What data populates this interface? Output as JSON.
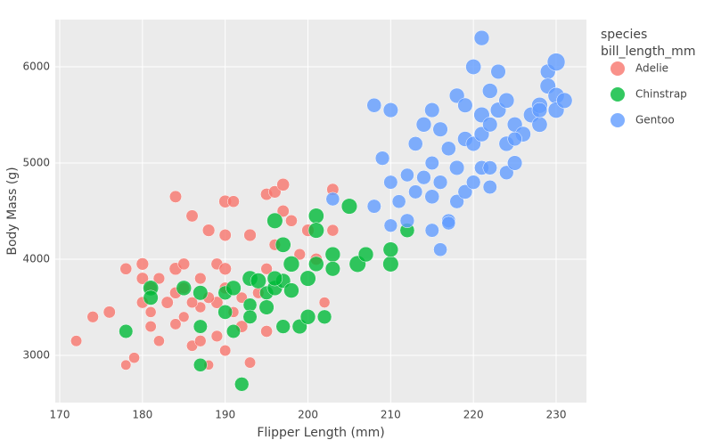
{
  "chart_data": {
    "type": "scatter",
    "xlabel": "Flipper Length (mm)",
    "ylabel": "Body Mass (g)",
    "legend_title": [
      "species",
      "bill_length_mm"
    ],
    "xlim": [
      169.46,
      233.66
    ],
    "ylim": [
      2509,
      6491
    ],
    "xticks": [
      170,
      180,
      190,
      200,
      210,
      220,
      230
    ],
    "yticks": [
      3000,
      4000,
      5000,
      6000
    ],
    "grid": true,
    "legend": "right",
    "series": [
      {
        "name": "Adelie",
        "color": "#F8766D",
        "x": [
          172,
          174,
          176,
          178,
          178,
          179,
          180,
          180,
          180,
          181,
          181,
          182,
          182,
          183,
          184,
          184,
          184,
          185,
          185,
          186,
          186,
          187,
          187,
          188,
          188,
          189,
          189,
          190,
          190,
          190,
          190,
          191,
          191,
          192,
          193,
          193,
          194,
          195,
          195,
          196,
          196,
          197,
          197,
          198,
          199,
          200,
          201,
          202,
          203,
          203,
          185,
          186,
          187,
          189,
          190,
          192,
          195,
          181,
          184,
          188
        ],
        "y": [
          3150,
          3400,
          3450,
          3900,
          2900,
          2975,
          3950,
          3800,
          3550,
          3700,
          3300,
          3150,
          3800,
          3550,
          3650,
          4650,
          3900,
          3950,
          3400,
          4450,
          3100,
          3800,
          3500,
          4300,
          2900,
          3950,
          3200,
          4600,
          4250,
          3900,
          3050,
          4600,
          3450,
          3300,
          4250,
          2925,
          3650,
          4675,
          3250,
          4700,
          4150,
          4775,
          4500,
          4400,
          4050,
          4300,
          4000,
          3550,
          4725,
          4300,
          3700,
          3550,
          3150,
          3550,
          3700,
          3600,
          3900,
          3450,
          3325,
          3600
        ],
        "size": [
          37,
          38,
          40,
          39,
          34,
          36,
          41,
          40,
          39,
          42,
          37,
          36,
          38,
          40,
          39,
          40,
          42,
          39,
          35,
          40,
          37,
          38,
          36,
          41,
          33,
          39,
          38,
          42,
          40,
          41,
          37,
          39,
          36,
          40,
          41,
          37,
          38,
          40,
          39,
          41,
          38,
          42,
          40,
          39,
          38,
          41,
          40,
          36,
          40,
          39,
          38,
          37,
          38,
          40,
          39,
          37,
          38,
          36,
          37,
          38
        ]
      },
      {
        "name": "Chinstrap",
        "color": "#00BA38",
        "x": [
          178,
          181,
          181,
          185,
          187,
          187,
          187,
          190,
          190,
          191,
          191,
          192,
          193,
          193,
          194,
          195,
          195,
          196,
          196,
          197,
          197,
          197,
          198,
          198,
          199,
          200,
          200,
          201,
          201,
          201,
          202,
          203,
          203,
          205,
          206,
          207,
          210,
          210,
          212,
          193,
          196
        ],
        "y": [
          3250,
          3700,
          3600,
          3700,
          3650,
          3300,
          2900,
          3450,
          3650,
          3700,
          3250,
          2700,
          3800,
          3525,
          3775,
          3500,
          3650,
          4400,
          3700,
          4150,
          3300,
          3775,
          3675,
          3950,
          3300,
          3400,
          3800,
          4450,
          4300,
          3950,
          3400,
          4050,
          3900,
          4550,
          3950,
          4050,
          3950,
          4100,
          4300,
          3400,
          3800
        ],
        "size": [
          46,
          51,
          49,
          50,
          49,
          46,
          45,
          48,
          47,
          50,
          46,
          47,
          51,
          45,
          52,
          49,
          46,
          52,
          50,
          51,
          47,
          49,
          50,
          53,
          49,
          50,
          52,
          51,
          52,
          50,
          47,
          50,
          49,
          52,
          55,
          50,
          52,
          50,
          48,
          46,
          50
        ]
      },
      {
        "name": "Gentoo",
        "color": "#619CFF",
        "x": [
          203,
          208,
          209,
          210,
          210,
          210,
          211,
          212,
          213,
          213,
          214,
          214,
          215,
          215,
          215,
          216,
          216,
          216,
          217,
          217,
          218,
          218,
          218,
          219,
          219,
          220,
          220,
          220,
          221,
          221,
          221,
          221,
          222,
          222,
          222,
          223,
          223,
          224,
          224,
          224,
          225,
          225,
          226,
          227,
          228,
          228,
          229,
          229,
          230,
          230,
          230,
          231,
          225,
          219,
          212,
          215,
          217,
          222,
          208,
          228
        ],
        "y": [
          4625,
          4550,
          5050,
          5550,
          4350,
          4800,
          4600,
          4400,
          5200,
          4700,
          5400,
          4850,
          5550,
          4650,
          5000,
          5350,
          4100,
          4800,
          4400,
          5150,
          5700,
          4950,
          4600,
          5250,
          4700,
          6000,
          5200,
          4800,
          6300,
          5300,
          5500,
          4950,
          5750,
          5400,
          4750,
          5950,
          5550,
          5200,
          5650,
          4900,
          5400,
          5000,
          5300,
          5500,
          5600,
          5400,
          5950,
          5800,
          6050,
          5700,
          5550,
          5650,
          5250,
          5600,
          4875,
          4300,
          4375,
          4950,
          5600,
          5550
        ],
        "size": [
          45,
          46,
          47,
          49,
          44,
          46,
          45,
          47,
          48,
          46,
          50,
          47,
          49,
          48,
          46,
          49,
          45,
          47,
          46,
          48,
          50,
          49,
          47,
          50,
          48,
          51,
          49,
          47,
          50,
          50,
          52,
          48,
          50,
          49,
          46,
          49,
          52,
          50,
          51,
          47,
          50,
          49,
          51,
          52,
          53,
          51,
          50,
          52,
          59,
          54,
          53,
          52,
          47,
          49,
          45,
          46,
          45,
          47,
          48,
          50
        ]
      }
    ]
  }
}
